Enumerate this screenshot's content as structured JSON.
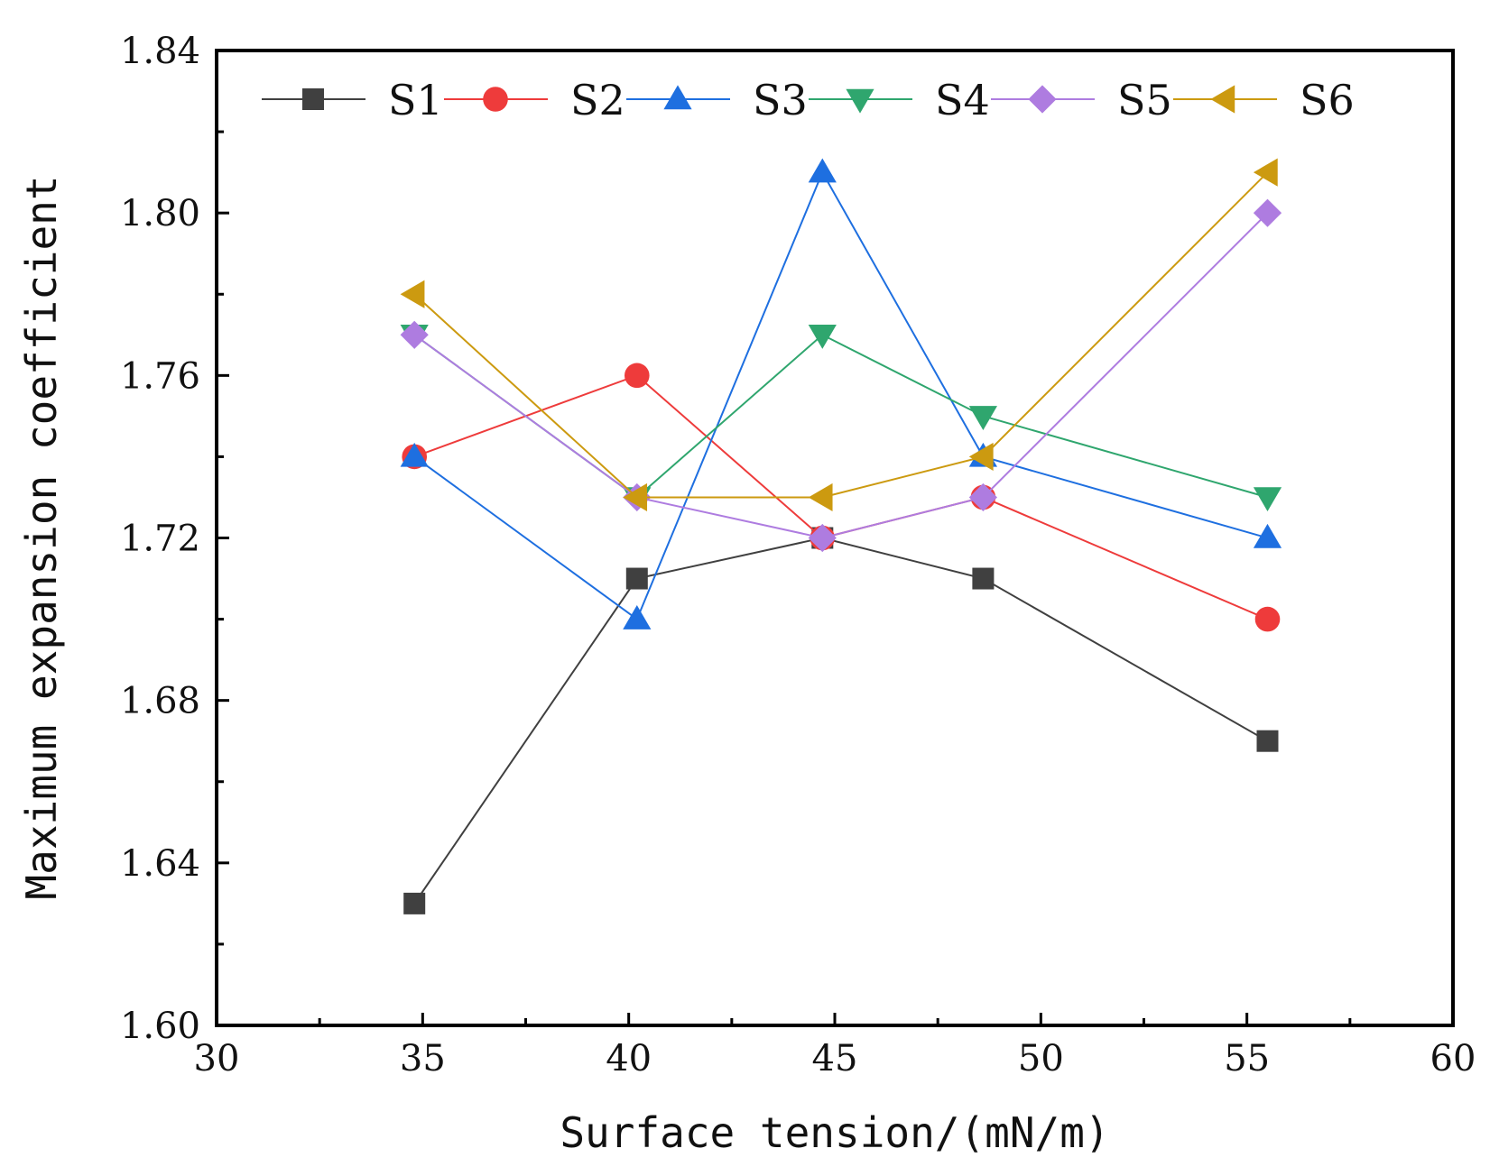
{
  "chart_data": {
    "type": "line",
    "title": "",
    "xlabel": "Surface tension/(mN/m)",
    "ylabel": "Maximum expansion coefficient",
    "xlim": [
      30,
      60
    ],
    "ylim": [
      1.6,
      1.84
    ],
    "xticks": [
      30,
      35,
      40,
      45,
      50,
      55,
      60
    ],
    "xtick_labels": [
      "30",
      "35",
      "40",
      "45",
      "50",
      "55",
      "60"
    ],
    "yticks": [
      1.6,
      1.64,
      1.68,
      1.72,
      1.76,
      1.8,
      1.84
    ],
    "ytick_labels": [
      "1.60",
      "1.64",
      "1.68",
      "1.72",
      "1.76",
      "1.80",
      "1.84"
    ],
    "grid": false,
    "legend_position": "top",
    "x": [
      34.8,
      40.2,
      44.7,
      48.6,
      55.5
    ],
    "series": [
      {
        "name": "S1",
        "color": "#404040",
        "marker": "square",
        "values": [
          1.63,
          1.71,
          1.72,
          1.71,
          1.67
        ]
      },
      {
        "name": "S2",
        "color": "#ee3b3b",
        "marker": "circle",
        "values": [
          1.74,
          1.76,
          1.72,
          1.73,
          1.7
        ]
      },
      {
        "name": "S3",
        "color": "#1e6fe0",
        "marker": "triangle-up",
        "values": [
          1.74,
          1.7,
          1.81,
          1.74,
          1.72
        ]
      },
      {
        "name": "S4",
        "color": "#2fa66e",
        "marker": "triangle-down",
        "values": [
          1.77,
          1.73,
          1.77,
          1.75,
          1.73
        ]
      },
      {
        "name": "S5",
        "color": "#ae7ce0",
        "marker": "diamond",
        "values": [
          1.77,
          1.73,
          1.72,
          1.73,
          1.8
        ]
      },
      {
        "name": "S6",
        "color": "#cc9a10",
        "marker": "triangle-left",
        "values": [
          1.78,
          1.73,
          1.73,
          1.74,
          1.81
        ]
      }
    ]
  }
}
